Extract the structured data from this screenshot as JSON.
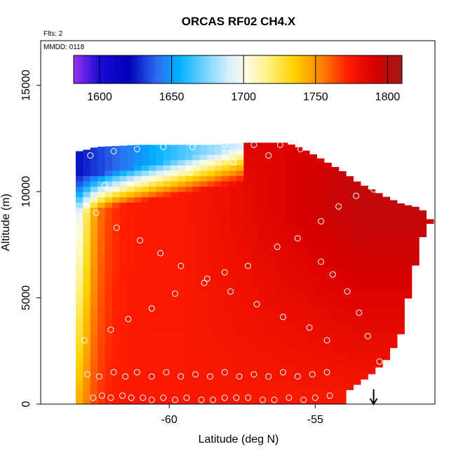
{
  "chart_data": {
    "type": "heatmap",
    "title": "ORCAS RF02 CH4.X",
    "flights_label": "Flts: 2",
    "date_label": "MMDD: 0118",
    "xlabel": "Latitude (deg N)",
    "ylabel": "Altitude (m)",
    "xlim": [
      -64.4,
      -50.9
    ],
    "ylim": [
      0,
      17100
    ],
    "x_ticks": [
      -60,
      -55
    ],
    "y_ticks": [
      0,
      5000,
      10000,
      15000
    ],
    "grid": false,
    "colorbar": {
      "placement": "top",
      "range": [
        1582,
        1810
      ],
      "ticks": [
        1600,
        1650,
        1700,
        1750,
        1800
      ],
      "stops": [
        {
          "value": 1582,
          "color": "#9a32f0"
        },
        {
          "value": 1600,
          "color": "#1a0ad6"
        },
        {
          "value": 1620,
          "color": "#0000b8"
        },
        {
          "value": 1640,
          "color": "#2d6cf0"
        },
        {
          "value": 1655,
          "color": "#00b0ff"
        },
        {
          "value": 1675,
          "color": "#7fd6ff"
        },
        {
          "value": 1690,
          "color": "#d8f0ff"
        },
        {
          "value": 1703,
          "color": "#fffbe0"
        },
        {
          "value": 1718,
          "color": "#fff07a"
        },
        {
          "value": 1735,
          "color": "#ffd200"
        },
        {
          "value": 1752,
          "color": "#ff8c00"
        },
        {
          "value": 1772,
          "color": "#ff1e00"
        },
        {
          "value": 1790,
          "color": "#d80000"
        },
        {
          "value": 1810,
          "color": "#a31818"
        }
      ]
    },
    "domain_ceiling": [
      [
        -63.0,
        11900
      ],
      [
        -62.5,
        12100
      ],
      [
        -61.0,
        12200
      ],
      [
        -58.5,
        12200
      ],
      [
        -57.5,
        12300
      ],
      [
        -56.0,
        12300
      ],
      [
        -55.5,
        12050
      ],
      [
        -55.0,
        11700
      ],
      [
        -54.5,
        11300
      ],
      [
        -54.0,
        10900
      ],
      [
        -53.5,
        10400
      ],
      [
        -53.0,
        10050
      ],
      [
        -52.5,
        9700
      ],
      [
        -52.0,
        9400
      ],
      [
        -51.6,
        9300
      ],
      [
        -51.3,
        9100
      ],
      [
        -51.2,
        8700
      ]
    ],
    "domain_floor": [
      [
        -63.2,
        0
      ],
      [
        -54.0,
        0
      ],
      [
        -54.0,
        500
      ],
      [
        -53.5,
        1000
      ],
      [
        -53.0,
        1500
      ],
      [
        -52.5,
        2200
      ],
      [
        -52.0,
        3500
      ],
      [
        -51.8,
        5200
      ],
      [
        -51.6,
        6400
      ],
      [
        -51.4,
        7500
      ],
      [
        -51.2,
        8500
      ]
    ],
    "field_model": {
      "base_low_altitude": 1775,
      "poleward_boundary_layer": {
        "latitude": -63,
        "value": 1690,
        "decay_deg": 0.45,
        "max_altitude_m": 10500
      },
      "upper_transition": {
        "south_altitude_m": 10200,
        "north_altitude_m": 12000,
        "upper_value": 1625
      },
      "north_enhancement": {
        "value": 1798,
        "from_latitude": -55.5
      }
    },
    "flight_track_points": [
      [
        -62.6,
        300
      ],
      [
        -62.3,
        400
      ],
      [
        -62.0,
        300
      ],
      [
        -61.6,
        400
      ],
      [
        -61.3,
        300
      ],
      [
        -60.9,
        300
      ],
      [
        -60.6,
        200
      ],
      [
        -60.2,
        300
      ],
      [
        -59.8,
        200
      ],
      [
        -59.4,
        300
      ],
      [
        -58.9,
        200
      ],
      [
        -58.5,
        200
      ],
      [
        -58.1,
        300
      ],
      [
        -57.7,
        300
      ],
      [
        -57.3,
        300
      ],
      [
        -56.8,
        200
      ],
      [
        -56.4,
        200
      ],
      [
        -55.9,
        300
      ],
      [
        -55.4,
        200
      ],
      [
        -55.0,
        300
      ],
      [
        -54.5,
        400
      ],
      [
        -62.8,
        1400
      ],
      [
        -62.4,
        1300
      ],
      [
        -61.9,
        1500
      ],
      [
        -61.5,
        1300
      ],
      [
        -61.1,
        1500
      ],
      [
        -60.6,
        1300
      ],
      [
        -60.1,
        1500
      ],
      [
        -59.6,
        1300
      ],
      [
        -59.1,
        1400
      ],
      [
        -58.6,
        1300
      ],
      [
        -58.1,
        1500
      ],
      [
        -57.6,
        1300
      ],
      [
        -57.1,
        1400
      ],
      [
        -56.6,
        1300
      ],
      [
        -56.1,
        1500
      ],
      [
        -55.6,
        1300
      ],
      [
        -55.1,
        1400
      ],
      [
        -54.6,
        1500
      ],
      [
        -62.9,
        3000
      ],
      [
        -62.0,
        3500
      ],
      [
        -61.4,
        4000
      ],
      [
        -60.6,
        4500
      ],
      [
        -59.8,
        5200
      ],
      [
        -58.8,
        5700
      ],
      [
        -58.1,
        6200
      ],
      [
        -57.3,
        6500
      ],
      [
        -56.3,
        7400
      ],
      [
        -55.6,
        7800
      ],
      [
        -54.8,
        8600
      ],
      [
        -54.2,
        9300
      ],
      [
        -53.6,
        9800
      ],
      [
        -53.0,
        10100
      ],
      [
        -52.2,
        10500
      ],
      [
        -52.8,
        2000
      ],
      [
        -53.2,
        3200
      ],
      [
        -53.5,
        4300
      ],
      [
        -53.9,
        5300
      ],
      [
        -54.4,
        6100
      ],
      [
        -54.8,
        6700
      ],
      [
        -62.7,
        11700
      ],
      [
        -61.9,
        11900
      ],
      [
        -61.1,
        12000
      ],
      [
        -60.2,
        12100
      ],
      [
        -59.2,
        12100
      ],
      [
        -58.1,
        12200
      ],
      [
        -57.1,
        12200
      ],
      [
        -56.2,
        12200
      ],
      [
        -55.5,
        12000
      ],
      [
        -62.5,
        9000
      ],
      [
        -61.8,
        8300
      ],
      [
        -61.0,
        7700
      ],
      [
        -60.3,
        7100
      ],
      [
        -59.6,
        6500
      ],
      [
        -58.7,
        5900
      ],
      [
        -57.9,
        5300
      ],
      [
        -57.0,
        4700
      ],
      [
        -56.1,
        4100
      ],
      [
        -55.2,
        3600
      ],
      [
        -54.6,
        3000
      ],
      [
        -62.2,
        10300
      ],
      [
        -60.8,
        10600
      ],
      [
        -59.3,
        10900
      ],
      [
        -57.8,
        11400
      ],
      [
        -56.6,
        11700
      ]
    ],
    "marker_latitude": -53.0
  }
}
